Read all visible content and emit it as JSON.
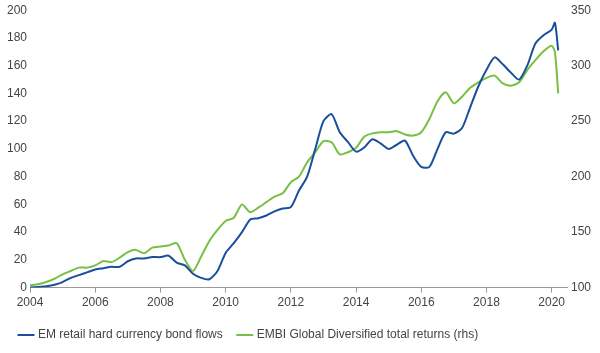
{
  "chart_data": {
    "type": "line",
    "x": [
      2004,
      2004.25,
      2004.5,
      2004.75,
      2005,
      2005.25,
      2005.5,
      2005.75,
      2006,
      2006.25,
      2006.5,
      2006.75,
      2007,
      2007.25,
      2007.5,
      2007.75,
      2008,
      2008.25,
      2008.5,
      2008.75,
      2009,
      2009.25,
      2009.5,
      2009.75,
      2010,
      2010.25,
      2010.5,
      2010.75,
      2011,
      2011.25,
      2011.5,
      2011.75,
      2012,
      2012.25,
      2012.5,
      2012.75,
      2013,
      2013.25,
      2013.5,
      2013.75,
      2014,
      2014.25,
      2014.5,
      2014.75,
      2015,
      2015.25,
      2015.5,
      2015.75,
      2016,
      2016.25,
      2016.5,
      2016.75,
      2017,
      2017.25,
      2017.5,
      2017.75,
      2018,
      2018.25,
      2018.5,
      2018.75,
      2019,
      2019.25,
      2019.5,
      2019.75,
      2020,
      2020.1,
      2020.2
    ],
    "series": [
      {
        "name": "EM retail hard currency bond flows",
        "color": "#1a4f9c",
        "axis": "y",
        "values": [
          0,
          0.5,
          1,
          2,
          4,
          7,
          9,
          11,
          13,
          14,
          15,
          15,
          19,
          21,
          21,
          22,
          22,
          23,
          18,
          16,
          10,
          7,
          6,
          12,
          25,
          32,
          40,
          49,
          50,
          52,
          55,
          57,
          58,
          70,
          80,
          100,
          120,
          125,
          112,
          105,
          98,
          101,
          107,
          104,
          100,
          103,
          106,
          95,
          87,
          87,
          100,
          112,
          111,
          115,
          130,
          145,
          157,
          166,
          161,
          155,
          150,
          160,
          176,
          182,
          186,
          191,
          171
        ]
      },
      {
        "name": "EMBI Global Diversified total returns (rhs)",
        "color": "#77c043",
        "axis": "y2",
        "values": [
          102,
          103,
          105,
          108,
          112,
          115,
          118,
          118,
          120,
          124,
          123,
          127,
          132,
          134,
          131,
          136,
          137,
          138,
          140,
          125,
          115,
          128,
          142,
          152,
          160,
          163,
          175,
          168,
          172,
          177,
          182,
          185,
          195,
          200,
          213,
          222,
          232,
          231,
          220,
          222,
          226,
          236,
          239,
          240,
          240,
          241,
          238,
          237,
          240,
          252,
          268,
          276,
          266,
          272,
          280,
          285,
          289,
          291,
          284,
          282,
          285,
          296,
          305,
          313,
          318,
          312,
          275
        ]
      }
    ],
    "xlim": [
      2004,
      2020.5
    ],
    "xticks": [
      2004,
      2006,
      2008,
      2010,
      2012,
      2014,
      2016,
      2018,
      2020
    ],
    "ylim": [
      0,
      200
    ],
    "yticks": [
      0,
      20,
      40,
      60,
      80,
      100,
      120,
      140,
      160,
      180,
      200
    ],
    "y2lim": [
      100,
      350
    ],
    "y2ticks": [
      100,
      150,
      200,
      250,
      300,
      350
    ],
    "grid": false,
    "legend": "bottom"
  }
}
